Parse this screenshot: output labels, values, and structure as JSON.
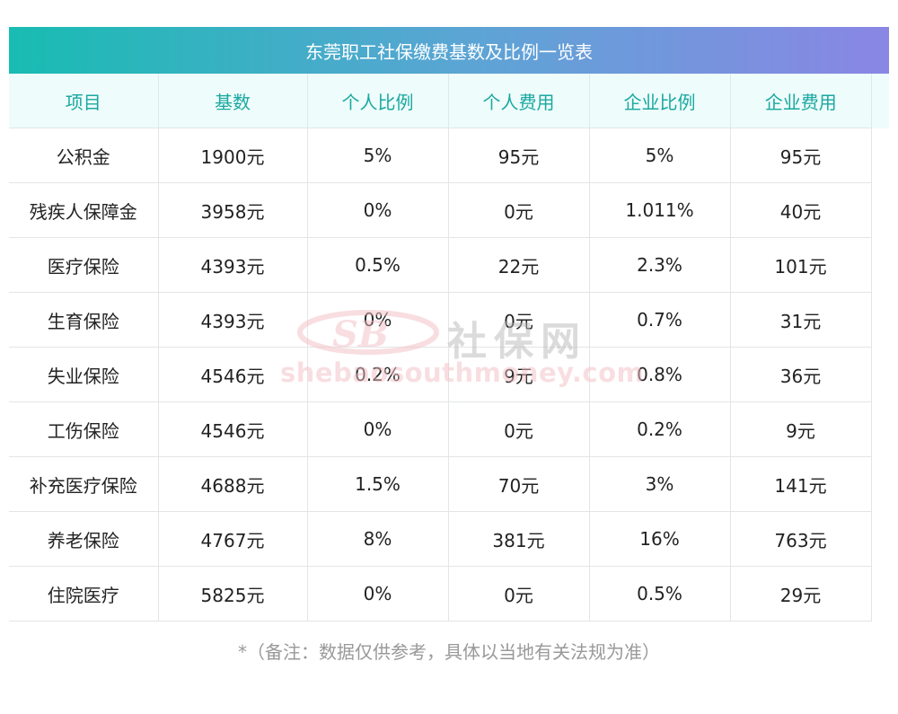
{
  "title": "东莞职工社保缴费基数及比例一览表",
  "headers": [
    "项目",
    "基数",
    "个人比例",
    "个人费用",
    "企业比例",
    "企业费用"
  ],
  "rows": [
    [
      "公积金",
      "1900元",
      "5%",
      "95元",
      "5%",
      "95元"
    ],
    [
      "残疾人保障金",
      "3958元",
      "0%",
      "0元",
      "1.011%",
      "40元"
    ],
    [
      "医疗保险",
      "4393元",
      "0.5%",
      "22元",
      "2.3%",
      "101元"
    ],
    [
      "生育保险",
      "4393元",
      "0%",
      "0元",
      "0.7%",
      "31元"
    ],
    [
      "失业保险",
      "4546元",
      "0.2%",
      "9元",
      "0.8%",
      "36元"
    ],
    [
      "工伤保险",
      "4546元",
      "0%",
      "0元",
      "0.2%",
      "9元"
    ],
    [
      "补充医疗保险",
      "4688元",
      "1.5%",
      "70元",
      "3%",
      "141元"
    ],
    [
      "养老保险",
      "4767元",
      "8%",
      "381元",
      "16%",
      "763元"
    ],
    [
      "住院医疗",
      "5825元",
      "0%",
      "0元",
      "0.5%",
      "29元"
    ]
  ],
  "watermark": {
    "name": "社保网",
    "domain": "shebaosouthmoney.com"
  },
  "footnote": "*（备注：数据仅供参考，具体以当地有关法规为准）",
  "colors": {
    "title_gradient_start": "#18bcb2",
    "title_gradient_end": "#8a86e4",
    "header_text": "#1aa8a0",
    "header_bg": "#eefcfb"
  }
}
